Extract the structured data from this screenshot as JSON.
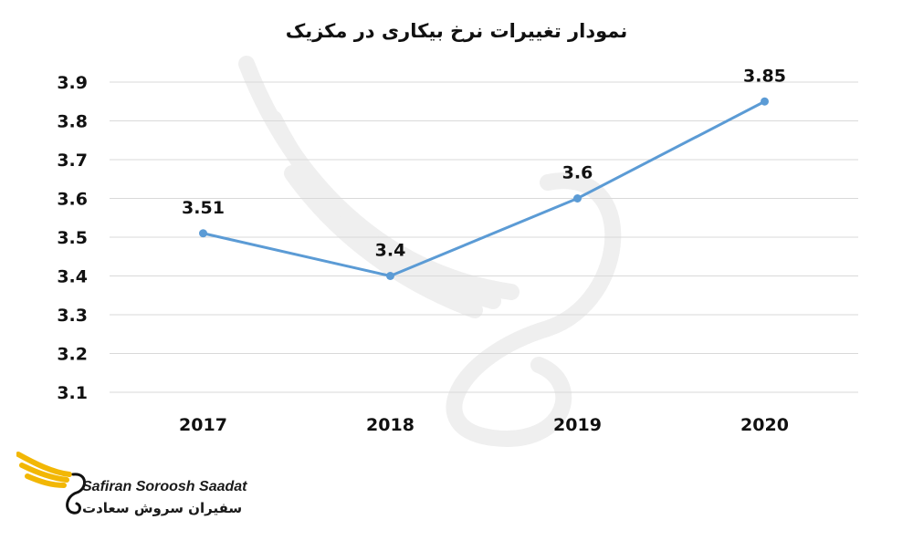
{
  "chart_data": {
    "type": "line",
    "title": "نمودار تغییرات نرخ بیکاری در مکزیک",
    "categories": [
      "2017",
      "2018",
      "2019",
      "2020"
    ],
    "series": [
      {
        "values": [
          3.51,
          3.4,
          3.6,
          3.85
        ],
        "data_labels": [
          "3.51",
          "3.4",
          "3.6",
          "3.85"
        ]
      }
    ],
    "yticks": [
      "3.1",
      "3.2",
      "3.3",
      "3.4",
      "3.5",
      "3.6",
      "3.7",
      "3.8",
      "3.9"
    ],
    "ylim": [
      3.1,
      3.9
    ],
    "grid": true,
    "legend": "none",
    "colors": {
      "line": "#5b9bd5",
      "grid": "#d9d9d9",
      "text": "#111111",
      "watermark": "#f3f3f3"
    }
  },
  "logo": {
    "text_en": "Safiran Soroosh Saadat",
    "text_fa": "سفیران سروش سعادت",
    "icon": "wing-swan-logo-icon",
    "color": "#f2b705"
  },
  "watermark": {
    "icon": "wing-swan-watermark-icon"
  }
}
